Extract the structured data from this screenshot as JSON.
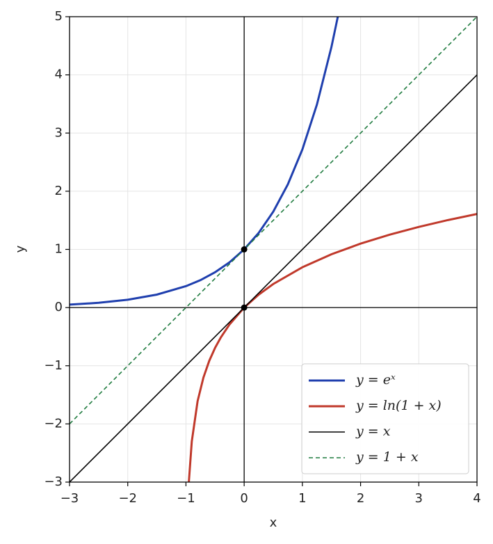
{
  "chart_data": {
    "type": "line",
    "xlabel": "x",
    "ylabel": "y",
    "xlim": [
      -3,
      4
    ],
    "ylim": [
      -3,
      5
    ],
    "xticks": [
      {
        "value": -3,
        "label": "−3"
      },
      {
        "value": -2,
        "label": "−2"
      },
      {
        "value": -1,
        "label": "−1"
      },
      0,
      1,
      2,
      3,
      4
    ],
    "yticks": [
      {
        "value": -3,
        "label": "−3"
      },
      {
        "value": -2,
        "label": "−2"
      },
      {
        "value": -1,
        "label": "−1"
      },
      0,
      1,
      2,
      3,
      4,
      5
    ],
    "grid": true,
    "legend": "lower right",
    "series": [
      {
        "name": "y = eˣ",
        "color": "#1f3fae",
        "style": "solid",
        "width": 3,
        "x": [
          -3,
          -2.5,
          -2,
          -1.5,
          -1,
          -0.75,
          -0.5,
          -0.25,
          0,
          0.25,
          0.5,
          0.75,
          1,
          1.25,
          1.5,
          1.609
        ],
        "values": [
          0.05,
          0.082,
          0.135,
          0.223,
          0.368,
          0.472,
          0.607,
          0.779,
          1,
          1.284,
          1.649,
          2.117,
          2.718,
          3.49,
          4.482,
          5
        ]
      },
      {
        "name": "y = ln(1 + x)",
        "color": "#c0392b",
        "style": "solid",
        "width": 3,
        "x": [
          -0.95,
          -0.9,
          -0.8,
          -0.7,
          -0.6,
          -0.5,
          -0.4,
          -0.25,
          0,
          0.25,
          0.5,
          1,
          1.5,
          2,
          2.5,
          3,
          3.5,
          4
        ],
        "values": [
          -2.996,
          -2.303,
          -1.609,
          -1.204,
          -0.916,
          -0.693,
          -0.511,
          -0.288,
          0,
          0.223,
          0.405,
          0.693,
          0.916,
          1.099,
          1.253,
          1.386,
          1.504,
          1.609
        ]
      },
      {
        "name": "y = x",
        "color": "#000000",
        "style": "solid",
        "width": 1.6,
        "x": [
          -3,
          4
        ],
        "values": [
          -3,
          4
        ]
      },
      {
        "name": "y = 1 + x",
        "color": "#1e7b3e",
        "style": "dashed",
        "width": 1.6,
        "x": [
          -3,
          4
        ],
        "values": [
          -2,
          5
        ]
      }
    ],
    "markers": {
      "x": [
        0,
        0
      ],
      "values": [
        1,
        0
      ],
      "color": "#000000"
    }
  }
}
